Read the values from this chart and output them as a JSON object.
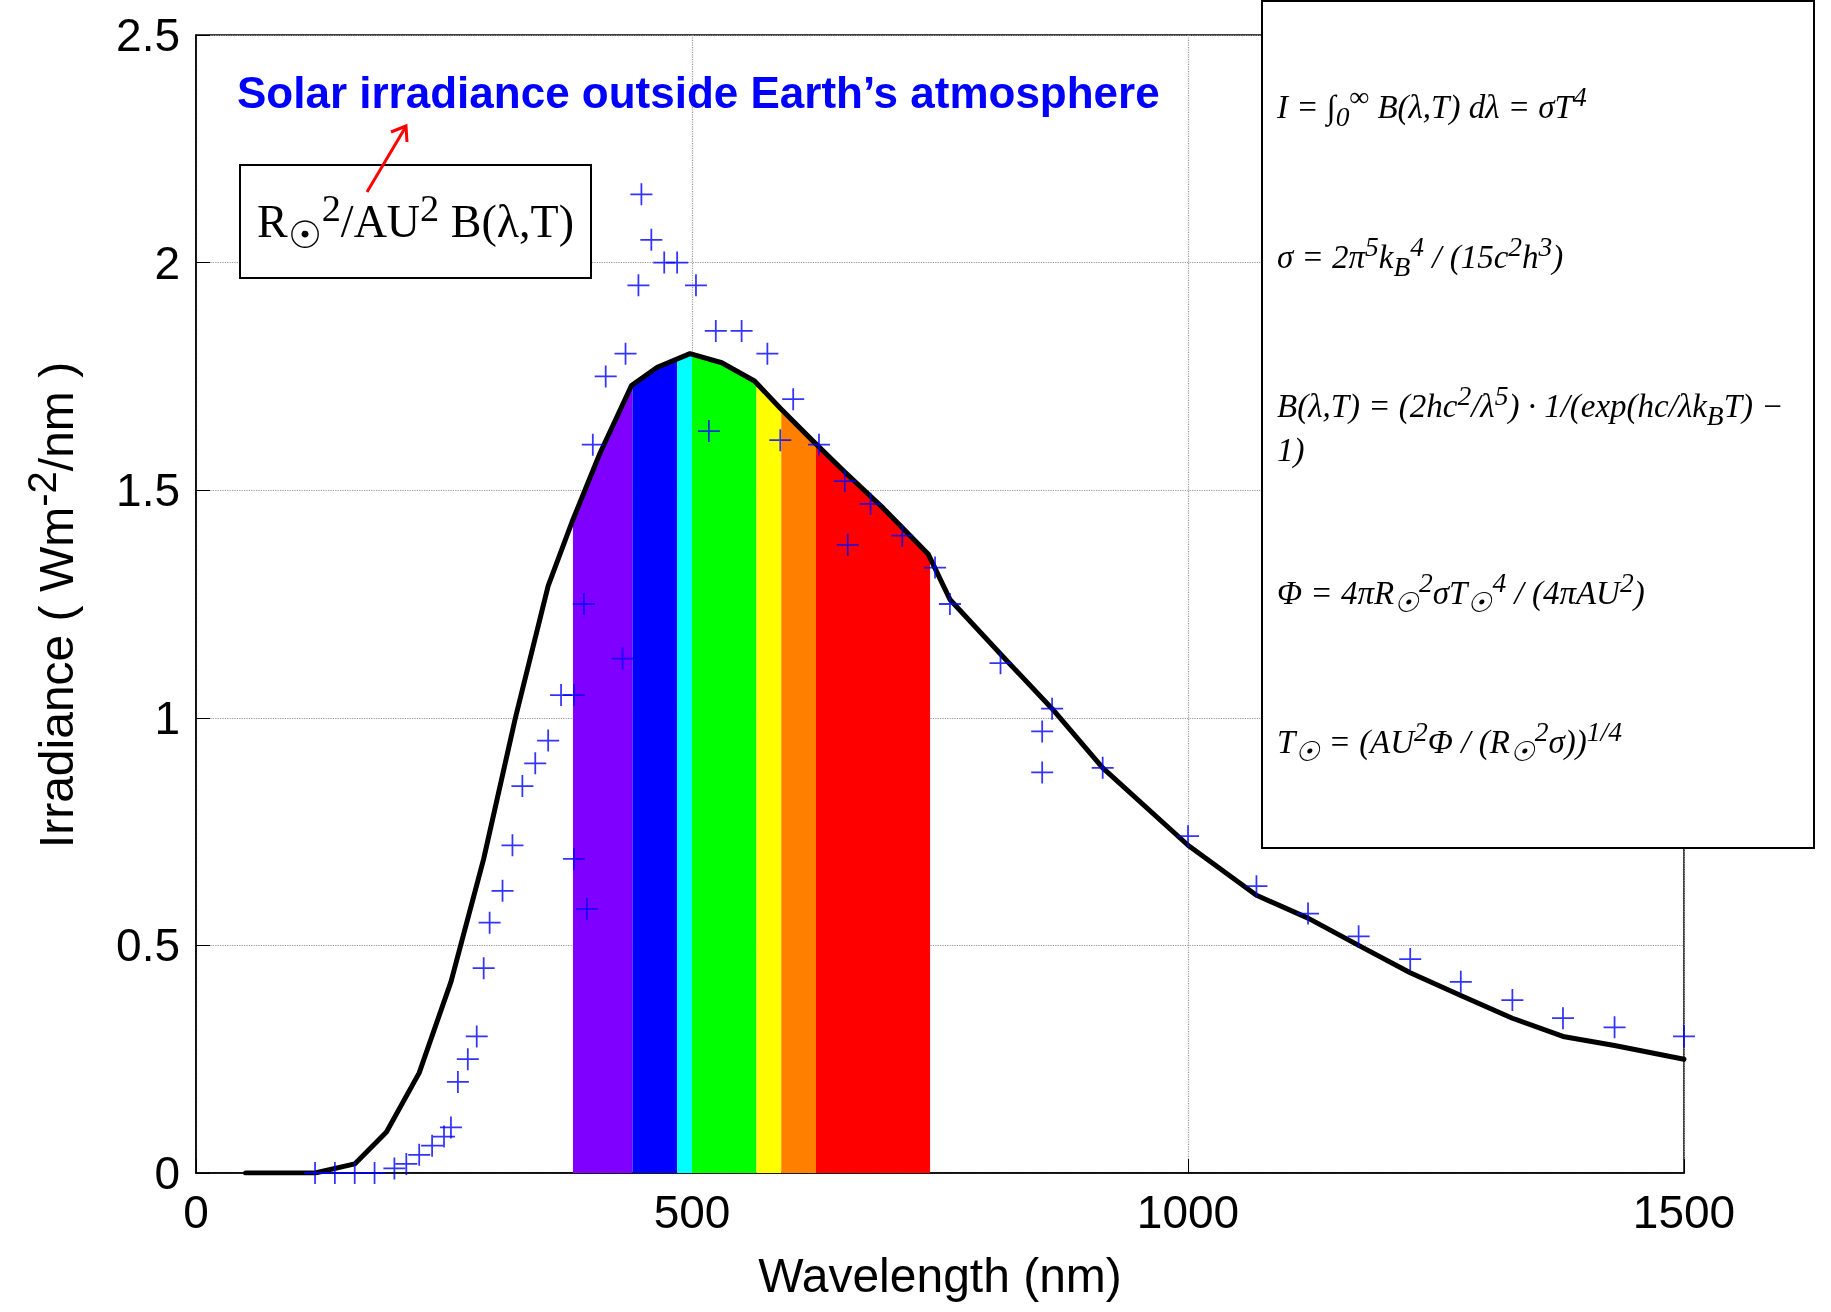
{
  "chart_data": {
    "type": "line",
    "xlabel": "Wavelength (nm)",
    "ylabel": "Irradiance ( Wm$^{-2}$/nm )",
    "xlim": [
      0,
      1500
    ],
    "xticks": [
      0,
      500,
      1000,
      1500
    ],
    "ylim": [
      0,
      2.5
    ],
    "yticks": [
      0,
      0.5,
      1,
      1.5,
      2,
      2.5
    ],
    "grid": true,
    "series": [
      {
        "name": "R$_{☉}$$^{2}$/AU$^{2}$ B(λ,T)",
        "color": "#000000",
        "line_style": "solid",
        "marker": "none",
        "x": [
          50,
          120,
          160,
          192,
          225,
          257,
          290,
          322,
          355,
          379,
          407,
          439,
          465,
          498,
          530,
          563,
          589,
          621,
          654,
          693,
          738,
          760,
          811,
          863,
          914,
          1000,
          1069,
          1121,
          1172,
          1224,
          1275,
          1327,
          1378,
          1430,
          1500
        ],
        "values": [
          0,
          0,
          0.02,
          0.09,
          0.22,
          0.42,
          0.69,
          1.0,
          1.29,
          1.43,
          1.58,
          1.73,
          1.77,
          1.8,
          1.78,
          1.74,
          1.68,
          1.61,
          1.54,
          1.46,
          1.36,
          1.26,
          1.14,
          1.02,
          0.89,
          0.72,
          0.61,
          0.56,
          0.5,
          0.44,
          0.39,
          0.34,
          0.3,
          0.28,
          0.25
        ]
      },
      {
        "name": "Solar irradiance outside Earth’s atmosphere",
        "type": "scatter",
        "color": "#0000ff",
        "marker": "cross",
        "x": [
          120,
          140,
          160,
          180,
          200,
          212,
          225,
          238,
          250,
          257,
          264,
          274,
          283,
          290,
          296,
          309,
          319,
          329,
          342,
          355,
          368,
          381,
          381,
          391,
          394,
          400,
          413,
          430,
          433,
          446,
          449,
          459,
          472,
          485,
          504,
          517,
          524,
          550,
          576,
          589,
          602,
          628,
          654,
          657,
          680,
          712,
          745,
          760,
          811,
          853,
          853,
          863,
          914,
          1000,
          1069,
          1121,
          1172,
          1224,
          1275,
          1327,
          1378,
          1430,
          1500
        ],
        "values": [
          0,
          0,
          0,
          0,
          0.01,
          0.02,
          0.04,
          0.06,
          0.08,
          0.1,
          0.2,
          0.25,
          0.3,
          0.45,
          0.55,
          0.62,
          0.72,
          0.85,
          0.9,
          0.95,
          1.05,
          1.05,
          0.69,
          1.25,
          0.58,
          1.6,
          1.75,
          1.13,
          1.8,
          1.95,
          2.15,
          2.05,
          2.0,
          2.0,
          1.95,
          1.63,
          1.85,
          1.85,
          1.8,
          1.61,
          1.7,
          1.6,
          1.52,
          1.38,
          1.47,
          1.4,
          1.33,
          1.25,
          1.12,
          0.97,
          0.88,
          1.02,
          0.89,
          0.74,
          0.63,
          0.57,
          0.52,
          0.47,
          0.42,
          0.38,
          0.34,
          0.32,
          0.3
        ]
      }
    ],
    "bands": [
      {
        "axis": "x",
        "from": 380,
        "to": 440,
        "color": "#8000ff"
      },
      {
        "axis": "x",
        "from": 440,
        "to": 485,
        "color": "#0000ff"
      },
      {
        "axis": "x",
        "from": 485,
        "to": 500,
        "color": "#00ffff"
      },
      {
        "axis": "x",
        "from": 500,
        "to": 565,
        "color": "#00ff00"
      },
      {
        "axis": "x",
        "from": 565,
        "to": 590,
        "color": "#ffff00"
      },
      {
        "axis": "x",
        "from": 590,
        "to": 625,
        "color": "#ff8000"
      },
      {
        "axis": "x",
        "from": 625,
        "to": 740,
        "color": "#ff0000"
      }
    ],
    "annotations": [
      "I = ∫$_{0}$$^{∞}$ B(λ,T) dλ = σT$^{4}$",
      "σ = 2π$^{5}$k$_{B}$$^{4}$ / (15c$^{2}$h$^{3}$)",
      "B(λ,T) = (2hc$^{2}$/λ$^{5}$) · 1/(exp(hc/λk$_{B}$T) − 1)",
      "Φ = 4πR$_{☉}$$^{2}$σT$_{☉}$$^{4}$ / (4πAU$^{2}$)",
      "T$_{☉}$ = (AU$^{2}$Φ / (R$_{☉}$$^{2}$σ))$^{1/4}$"
    ]
  }
}
